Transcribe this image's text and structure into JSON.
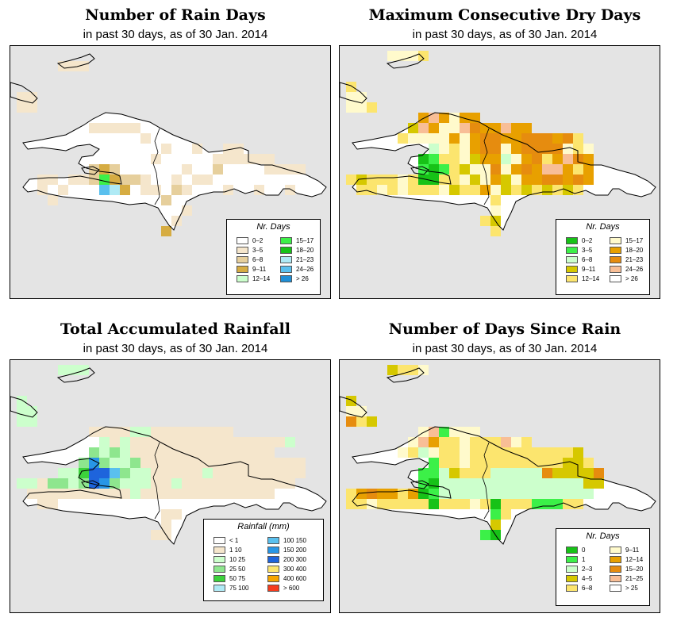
{
  "panels": [
    {
      "id": "rain-days",
      "title": "Number of Rain Days",
      "subtitle": "in past 30 days, as of  30 Jan. 2014",
      "legend": {
        "title": "Nr. Days",
        "items": [
          {
            "label": "0–2",
            "color": "#ffffff"
          },
          {
            "label": "3–5",
            "color": "#f5e6cc"
          },
          {
            "label": "6–8",
            "color": "#e6cf9c"
          },
          {
            "label": "9–11",
            "color": "#d6ac42"
          },
          {
            "label": "12–14",
            "color": "#ccffcc"
          },
          {
            "label": "15–17",
            "color": "#3cf048"
          },
          {
            "label": "18–20",
            "color": "#17c217"
          },
          {
            "label": "21–23",
            "color": "#afeaf5"
          },
          {
            "label": "24–26",
            "color": "#5ac0ee"
          },
          {
            "label": "> 26",
            "color": "#1f8fd6"
          }
        ]
      }
    },
    {
      "id": "max-dry-days",
      "title": "Maximum Consecutive Dry Days",
      "subtitle": "in past 30 days, as of  30 Jan. 2014",
      "legend": {
        "title": "Nr. Days",
        "items": [
          {
            "label": "0–2",
            "color": "#17c217"
          },
          {
            "label": "3–5",
            "color": "#3cf048"
          },
          {
            "label": "6–8",
            "color": "#ccffcc"
          },
          {
            "label": "9–11",
            "color": "#d6c800"
          },
          {
            "label": "12–14",
            "color": "#fce56e"
          },
          {
            "label": "15–17",
            "color": "#fffacc"
          },
          {
            "label": "18–20",
            "color": "#e8a000"
          },
          {
            "label": "21–23",
            "color": "#e68c0f"
          },
          {
            "label": "24–26",
            "color": "#f8be96"
          },
          {
            "label": "> 26",
            "color": "#ffffff"
          }
        ]
      }
    },
    {
      "id": "total-rainfall",
      "title": "Total Accumulated Rainfall",
      "subtitle": "in past 30 days, as of  30 Jan. 2014",
      "legend": {
        "title": "Rainfall (mm)",
        "items": [
          {
            "label": "< 1",
            "color": "#ffffff"
          },
          {
            "label": "1    10",
            "color": "#f5e6cc"
          },
          {
            "label": "10    25",
            "color": "#ccffcc"
          },
          {
            "label": "25    50",
            "color": "#8ee68e"
          },
          {
            "label": "50    75",
            "color": "#3cd23c"
          },
          {
            "label": "75   100",
            "color": "#afeaf5"
          },
          {
            "label": "100   150",
            "color": "#5ac0ee"
          },
          {
            "label": "150   200",
            "color": "#2896e6"
          },
          {
            "label": "200   300",
            "color": "#1e64dc"
          },
          {
            "label": "300   400",
            "color": "#fce56e"
          },
          {
            "label": "400   600",
            "color": "#f5a500"
          },
          {
            "label": "> 600",
            "color": "#f53c1e"
          }
        ]
      }
    },
    {
      "id": "days-since-rain",
      "title": "Number of Days Since Rain",
      "subtitle": "in past 30 days, as of  30 Jan. 2014",
      "legend": {
        "title": "Nr. Days",
        "items": [
          {
            "label": "0",
            "color": "#17c217"
          },
          {
            "label": "1",
            "color": "#3cf048"
          },
          {
            "label": "2–3",
            "color": "#ccffcc"
          },
          {
            "label": "4–5",
            "color": "#d6c800"
          },
          {
            "label": "6–8",
            "color": "#fce56e"
          },
          {
            "label": "9–11",
            "color": "#fffacc"
          },
          {
            "label": "12–14",
            "color": "#e8a000"
          },
          {
            "label": "15–20",
            "color": "#e68c0f"
          },
          {
            "label": "21–25",
            "color": "#f8be96"
          },
          {
            "label": "> 25",
            "color": "#ffffff"
          }
        ]
      }
    }
  ]
}
